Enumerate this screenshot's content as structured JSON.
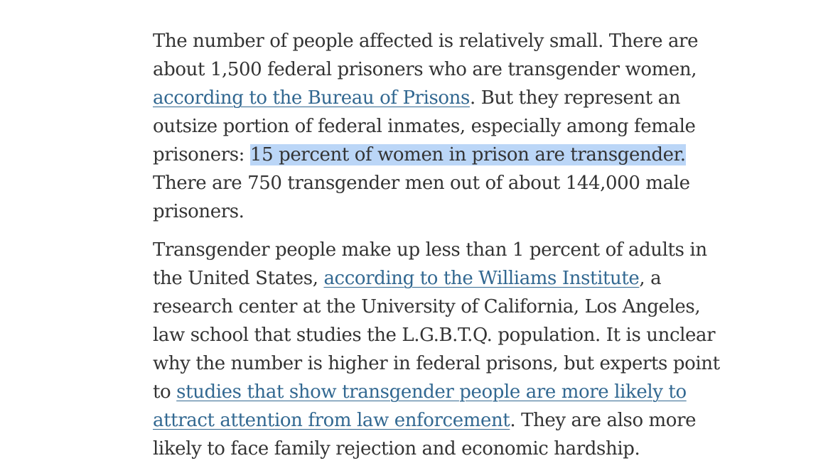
{
  "article": {
    "paragraph_1": {
      "text_1": "The number of people affected is relatively small. There are about 1,500 federal prisoners who are transgender women, ",
      "link_1": "according to the Bureau of Prisons",
      "text_2": ". But they represent an outsize portion of federal inmates, especially among female prisoners: ",
      "highlight": "15 percent of women in prison are transgender.",
      "text_3": " There are 750 transgender men out of about 144,000 male prisoners."
    },
    "paragraph_2": {
      "text_1": "Transgender people make up less than 1 percent of adults in the United States, ",
      "link_1": "according to the Williams Institute",
      "text_2": ", a research center at the University of California, Los Angeles, law school that studies the L.G.B.T.Q. population. It is unclear why the number is higher in federal prisons, but experts point to ",
      "link_2": "studies that show transgender people are more likely to attract attention from law enforcement",
      "text_3": ". They are also more likely to face family rejection and economic hardship."
    }
  },
  "colors": {
    "text": "#333333",
    "link": "#326891",
    "highlight": "#bbd6f7",
    "background": "#ffffff"
  }
}
